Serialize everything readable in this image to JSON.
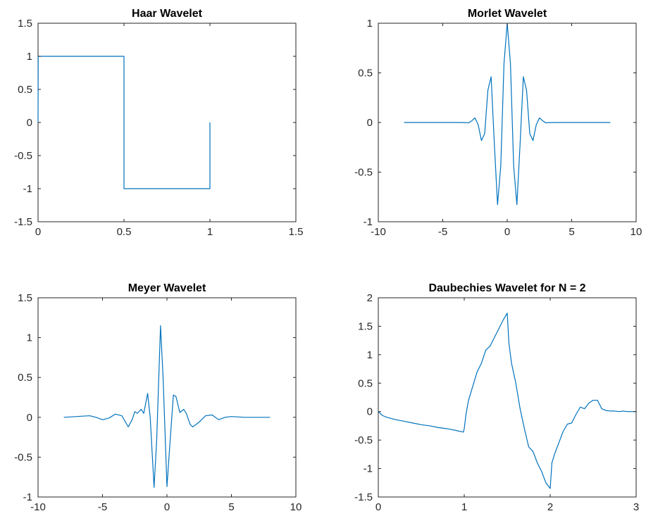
{
  "chart_data": [
    {
      "type": "line",
      "title": "Haar Wavelet",
      "xlim": [
        0,
        1.5
      ],
      "ylim": [
        -1.5,
        1.5
      ],
      "xticks": [
        0,
        0.5,
        1,
        1.5
      ],
      "xtick_labels": [
        "0",
        "0.5",
        "1",
        "1.5"
      ],
      "yticks": [
        -1.5,
        -1,
        -0.5,
        0,
        0.5,
        1,
        1.5
      ],
      "ytick_labels": [
        "-1.5",
        "-1",
        "-0.5",
        "0",
        "0.5",
        "1",
        "1.5"
      ],
      "grid": false,
      "series": [
        {
          "color": "#0072BD",
          "x": [
            0,
            0.001,
            0.5,
            0.5,
            1,
            1
          ],
          "y": [
            0,
            1,
            1,
            -1,
            -1,
            0
          ]
        }
      ]
    },
    {
      "type": "line",
      "title": "Morlet Wavelet",
      "xlim": [
        -10,
        10
      ],
      "ylim": [
        -1,
        1
      ],
      "xticks": [
        -10,
        -5,
        0,
        5,
        10
      ],
      "xtick_labels": [
        "-10",
        "-5",
        "0",
        "5",
        "10"
      ],
      "yticks": [
        -1,
        -0.5,
        0,
        0.5,
        1
      ],
      "ytick_labels": [
        "-1",
        "-0.5",
        "0",
        "0.5",
        "1"
      ],
      "grid": false,
      "series": [
        {
          "color": "#0072BD",
          "x": [
            -8,
            -4,
            -3.25,
            -3,
            -2.75,
            -2.5,
            -2.25,
            -2,
            -1.75,
            -1.5,
            -1.25,
            -1,
            -0.75,
            -0.5,
            -0.25,
            0,
            0.25,
            0.5,
            0.75,
            1,
            1.25,
            1.5,
            1.75,
            2,
            2.25,
            2.5,
            2.75,
            3,
            3.25,
            4,
            8
          ],
          "y": [
            0,
            0,
            -0.001,
            -0.004,
            0.017,
            0.046,
            -0.024,
            -0.182,
            -0.113,
            0.324,
            0.461,
            -0.213,
            -0.828,
            -0.437,
            0.594,
            1,
            0.594,
            -0.437,
            -0.828,
            -0.213,
            0.461,
            0.324,
            -0.113,
            -0.182,
            -0.024,
            0.046,
            0.017,
            -0.004,
            -0.001,
            0,
            0
          ]
        }
      ]
    },
    {
      "type": "line",
      "title": "Meyer Wavelet",
      "xlim": [
        -10,
        10
      ],
      "ylim": [
        -1,
        1.5
      ],
      "xticks": [
        -10,
        -5,
        0,
        5,
        10
      ],
      "xtick_labels": [
        "-10",
        "-5",
        "0",
        "5",
        "10"
      ],
      "yticks": [
        -1,
        -0.5,
        0,
        0.5,
        1,
        1.5
      ],
      "ytick_labels": [
        "-1",
        "-0.5",
        "0",
        "0.5",
        "1",
        "1.5"
      ],
      "grid": false,
      "series": [
        {
          "color": "#0072BD",
          "x": [
            -8,
            -7,
            -6,
            -5.5,
            -5,
            -4.5,
            -4,
            -3.5,
            -3,
            -2.7,
            -2.5,
            -2.3,
            -2,
            -1.8,
            -1.5,
            -1.3,
            -1,
            -0.8,
            -0.5,
            -0.3,
            0,
            0.2,
            0.5,
            0.7,
            1,
            1.3,
            1.5,
            1.8,
            2,
            2.5,
            3,
            3.5,
            4,
            4.5,
            5,
            6,
            7,
            8
          ],
          "y": [
            0,
            0.01,
            0.02,
            0,
            -0.03,
            -0.01,
            0.04,
            0.02,
            -0.12,
            -0.03,
            0.07,
            0.05,
            0.1,
            0.05,
            0.3,
            0,
            -0.88,
            -0.3,
            1.15,
            0.5,
            -0.87,
            -0.4,
            0.28,
            0.26,
            0.06,
            0.1,
            0.05,
            -0.09,
            -0.12,
            -0.06,
            0.02,
            0.03,
            -0.03,
            0,
            0.01,
            0,
            0,
            0
          ]
        }
      ]
    },
    {
      "type": "line",
      "title": "Daubechies Wavelet for N = 2",
      "xlim": [
        0,
        3
      ],
      "ylim": [
        -1.5,
        2
      ],
      "xticks": [
        0,
        1,
        2,
        3
      ],
      "xtick_labels": [
        "0",
        "1",
        "2",
        "3"
      ],
      "yticks": [
        -1.5,
        -1,
        -0.5,
        0,
        0.5,
        1,
        1.5,
        2
      ],
      "ytick_labels": [
        "-1.5",
        "-1",
        "-0.5",
        "0",
        "0.5",
        "1",
        "1.5",
        "2"
      ],
      "grid": false,
      "series": [
        {
          "color": "#0072BD",
          "x": [
            0,
            0.05,
            0.1,
            0.2,
            0.3,
            0.4,
            0.5,
            0.6,
            0.7,
            0.8,
            0.9,
            0.99,
            1,
            1.02,
            1.05,
            1.1,
            1.15,
            1.2,
            1.25,
            1.3,
            1.35,
            1.4,
            1.45,
            1.5,
            1.52,
            1.55,
            1.6,
            1.65,
            1.7,
            1.75,
            1.8,
            1.85,
            1.9,
            1.95,
            2,
            2.02,
            2.05,
            2.1,
            2.15,
            2.2,
            2.25,
            2.3,
            2.35,
            2.4,
            2.45,
            2.5,
            2.55,
            2.6,
            2.65,
            2.7,
            2.75,
            2.8,
            2.85,
            2.9,
            2.95,
            3
          ],
          "y": [
            0,
            -0.07,
            -0.1,
            -0.14,
            -0.17,
            -0.2,
            -0.23,
            -0.25,
            -0.28,
            -0.3,
            -0.33,
            -0.36,
            -0.3,
            -0.05,
            0.2,
            0.45,
            0.7,
            0.85,
            1.08,
            1.15,
            1.3,
            1.45,
            1.6,
            1.73,
            1.2,
            0.85,
            0.5,
            0.05,
            -0.3,
            -0.62,
            -0.7,
            -0.9,
            -1.05,
            -1.25,
            -1.35,
            -0.9,
            -0.75,
            -0.55,
            -0.35,
            -0.22,
            -0.2,
            -0.05,
            0.08,
            0.05,
            0.15,
            0.2,
            0.2,
            0.05,
            0.02,
            0.01,
            0.01,
            0.0,
            0.01,
            0.0,
            0.0,
            0.0
          ]
        }
      ]
    }
  ]
}
